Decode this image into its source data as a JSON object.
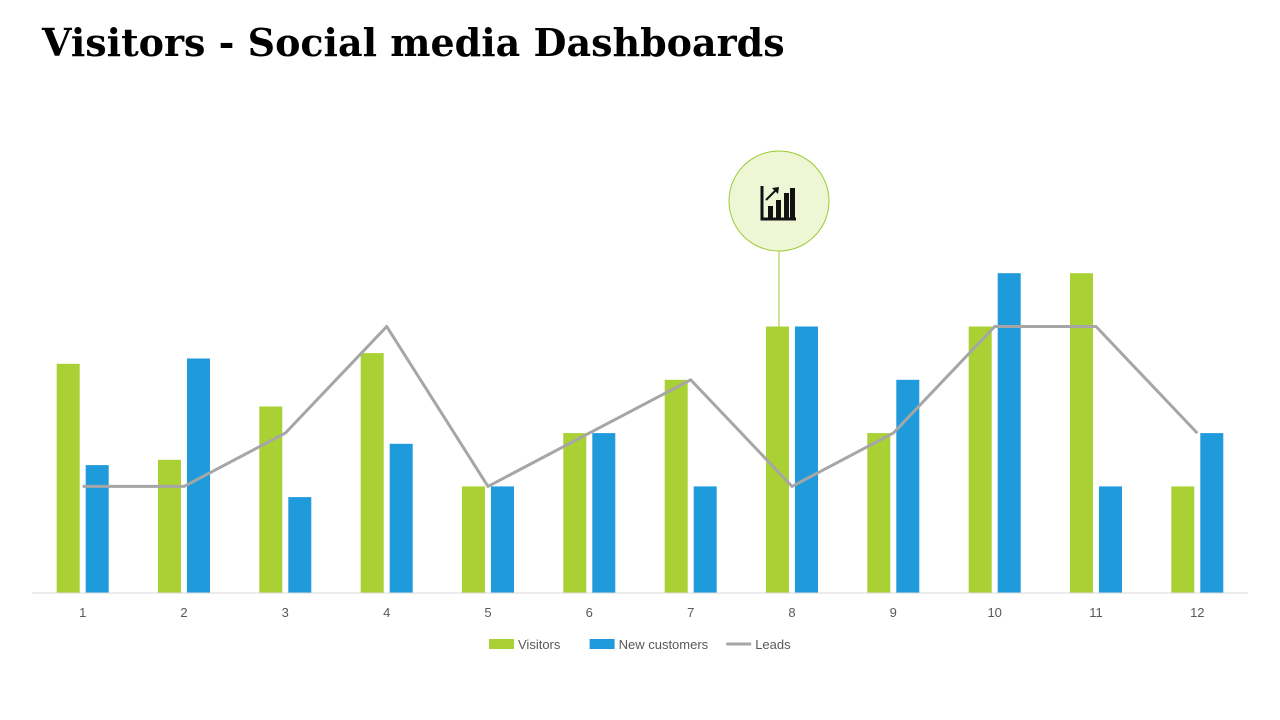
{
  "title": "Visitors - Social media Dashboards",
  "icon": {
    "name": "bar-chart-growth-icon",
    "fill": "#eef6d6",
    "stroke": "#9acd32"
  },
  "chart_data": {
    "type": "bar",
    "categories": [
      "1",
      "2",
      "3",
      "4",
      "5",
      "6",
      "7",
      "8",
      "9",
      "10",
      "11",
      "12"
    ],
    "series": [
      {
        "name": "Visitors",
        "type": "bar",
        "color": "#a9d134",
        "values": [
          4.3,
          2.5,
          3.5,
          4.5,
          2,
          3,
          4,
          5,
          3,
          5,
          6,
          2
        ]
      },
      {
        "name": "New customers",
        "type": "bar",
        "color": "#1f9bdc",
        "values": [
          2.4,
          4.4,
          1.8,
          2.8,
          2,
          3,
          2,
          5,
          4,
          6,
          2,
          3
        ]
      },
      {
        "name": "Leads",
        "type": "line",
        "color": "#a6a6a6",
        "values": [
          2,
          2,
          3,
          5,
          2,
          3,
          4,
          2,
          3,
          5,
          5,
          3
        ]
      }
    ],
    "ylim": [
      0,
      10
    ],
    "grid": false,
    "legend": "bottom",
    "xlabel": "",
    "ylabel": ""
  }
}
